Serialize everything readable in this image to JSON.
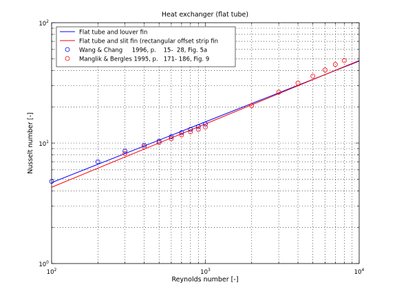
{
  "figure": {
    "title": "Heat exchanger (flat tube)",
    "xlabel": "Reynolds number [-]",
    "ylabel": "Nusselt number [-]"
  },
  "chart_data": {
    "type": "line",
    "title": "Heat exchanger (flat tube)",
    "xlabel": "Reynolds number [-]",
    "ylabel": "Nusselt number [-]",
    "xscale": "log",
    "yscale": "log",
    "xlim": [
      100,
      10000
    ],
    "ylim": [
      1,
      100
    ],
    "grid": true,
    "legend_position": "top-left",
    "x_tick_labels": [
      {
        "base": "10",
        "exp": "2"
      },
      {
        "base": "10",
        "exp": "3"
      },
      {
        "base": "10",
        "exp": "4"
      }
    ],
    "y_tick_labels": [
      {
        "base": "10",
        "exp": "0"
      },
      {
        "base": "10",
        "exp": "1"
      },
      {
        "base": "10",
        "exp": "2"
      }
    ],
    "series": [
      {
        "name": "Flat tube and louver fin",
        "kind": "line",
        "color": "#0000ff",
        "x": [
          100,
          10000
        ],
        "y": [
          4.7,
          48
        ]
      },
      {
        "name": "Flat tube and slit fin (rectangular offset strip fin",
        "kind": "line",
        "color": "#ff0000",
        "x": [
          100,
          10000
        ],
        "y": [
          4.3,
          48.5
        ]
      },
      {
        "name": "Wang & Chang     1996, p.    15-  28, Fig. 5a",
        "kind": "marker",
        "color": "#0000ff",
        "x": [
          100,
          200,
          300,
          400,
          500,
          600,
          700,
          800,
          900,
          1000
        ],
        "y": [
          4.8,
          7.0,
          8.6,
          9.6,
          10.4,
          11.3,
          12.2,
          13.0,
          13.7,
          14.4
        ]
      },
      {
        "name": "Manglik & Bergles 1995, p.   171- 186, Fig. 9",
        "kind": "marker",
        "color": "#ff0000",
        "x": [
          300,
          400,
          500,
          600,
          700,
          800,
          900,
          1000,
          2000,
          3000,
          4000,
          5000,
          6000,
          7000,
          8000
        ],
        "y": [
          8.2,
          9.3,
          10.1,
          10.9,
          11.7,
          12.4,
          13.0,
          13.6,
          20.5,
          26.5,
          31.5,
          36.0,
          40.5,
          45.0,
          48.5
        ]
      }
    ]
  }
}
